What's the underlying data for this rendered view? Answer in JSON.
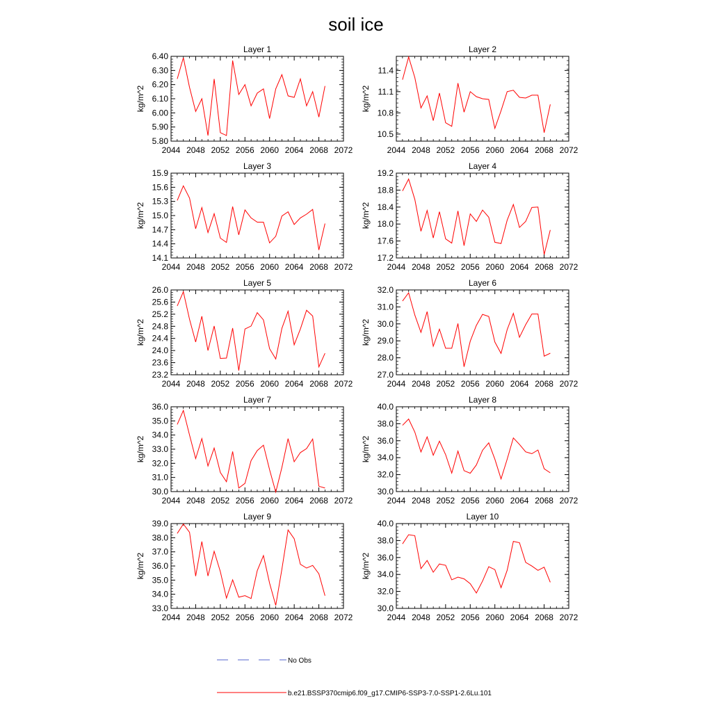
{
  "title": "soil ice",
  "legend": {
    "entries": [
      {
        "label": "No Obs",
        "color": "#5566cc",
        "dashed": true
      },
      {
        "label": "b.e21.BSSP370cmip6.f09_g17.CMIP6-SSP3-7.0-SSP1-2.6Lu.101",
        "color": "#ff0000",
        "dashed": false
      }
    ]
  },
  "series_color": "#ff0000",
  "chart_data": [
    {
      "type": "line",
      "title": "Layer 1",
      "ylabel": "kg/m^2",
      "xlim": [
        2044,
        2072
      ],
      "ylim": [
        5.8,
        6.4
      ],
      "xticks": [
        "2044",
        "2048",
        "2052",
        "2056",
        "2060",
        "2064",
        "2068",
        "2072"
      ],
      "yticks": [
        "5.80",
        "5.90",
        "6.00",
        "6.10",
        "6.20",
        "6.30",
        "6.40"
      ],
      "x": [
        2045,
        2046,
        2047,
        2048,
        2049,
        2050,
        2051,
        2052,
        2053,
        2054,
        2055,
        2056,
        2057,
        2058,
        2059,
        2060,
        2061,
        2062,
        2063,
        2064,
        2065,
        2066,
        2067,
        2068,
        2069
      ],
      "y": [
        6.24,
        6.39,
        6.18,
        6.01,
        6.1,
        5.84,
        6.24,
        5.86,
        5.84,
        6.37,
        6.13,
        6.2,
        6.05,
        6.14,
        6.17,
        5.96,
        6.17,
        6.27,
        6.12,
        6.11,
        6.24,
        6.05,
        6.15,
        5.97,
        6.19
      ]
    },
    {
      "type": "line",
      "title": "Layer 2",
      "ylabel": "kg/m^2",
      "xlim": [
        2044,
        2072
      ],
      "ylim": [
        10.4,
        11.6
      ],
      "xticks": [
        "2044",
        "2048",
        "2052",
        "2056",
        "2060",
        "2064",
        "2068",
        "2072"
      ],
      "yticks": [
        "10.5",
        "10.8",
        "11.1",
        "11.4"
      ],
      "x": [
        2045,
        2046,
        2047,
        2048,
        2049,
        2050,
        2051,
        2052,
        2053,
        2054,
        2055,
        2056,
        2057,
        2058,
        2059,
        2060,
        2061,
        2062,
        2063,
        2064,
        2065,
        2066,
        2067,
        2068,
        2069
      ],
      "y": [
        11.27,
        11.59,
        11.3,
        10.87,
        11.04,
        10.69,
        11.08,
        10.66,
        10.61,
        11.22,
        10.81,
        11.1,
        11.03,
        11.0,
        10.99,
        10.58,
        10.83,
        11.1,
        11.12,
        11.02,
        11.01,
        11.05,
        11.05,
        10.52,
        10.92
      ]
    },
    {
      "type": "line",
      "title": "Layer 3",
      "ylabel": "kg/m^2",
      "xlim": [
        2044,
        2072
      ],
      "ylim": [
        14.1,
        15.9
      ],
      "xticks": [
        "2044",
        "2048",
        "2052",
        "2056",
        "2060",
        "2064",
        "2068",
        "2072"
      ],
      "yticks": [
        "14.1",
        "14.4",
        "14.7",
        "15.0",
        "15.3",
        "15.6",
        "15.9"
      ],
      "x": [
        2045,
        2046,
        2047,
        2048,
        2049,
        2050,
        2051,
        2052,
        2053,
        2054,
        2055,
        2056,
        2057,
        2058,
        2059,
        2060,
        2061,
        2062,
        2063,
        2064,
        2065,
        2066,
        2067,
        2068,
        2069
      ],
      "y": [
        15.32,
        15.63,
        15.37,
        14.72,
        15.17,
        14.64,
        15.04,
        14.52,
        14.43,
        15.19,
        14.59,
        15.12,
        14.95,
        14.86,
        14.86,
        14.42,
        14.56,
        14.99,
        15.08,
        14.81,
        14.95,
        15.03,
        15.13,
        14.27,
        14.83
      ]
    },
    {
      "type": "line",
      "title": "Layer 4",
      "ylabel": "kg/m^2",
      "xlim": [
        2044,
        2072
      ],
      "ylim": [
        17.2,
        19.2
      ],
      "xticks": [
        "2044",
        "2048",
        "2052",
        "2056",
        "2060",
        "2064",
        "2068",
        "2072"
      ],
      "yticks": [
        "17.2",
        "17.6",
        "18.0",
        "18.4",
        "18.8",
        "19.2"
      ],
      "x": [
        2045,
        2046,
        2047,
        2048,
        2049,
        2050,
        2051,
        2052,
        2053,
        2054,
        2055,
        2056,
        2057,
        2058,
        2059,
        2060,
        2061,
        2062,
        2063,
        2064,
        2065,
        2066,
        2067,
        2068,
        2069
      ],
      "y": [
        18.78,
        19.06,
        18.58,
        17.83,
        18.32,
        17.67,
        18.29,
        17.65,
        17.55,
        18.31,
        17.49,
        18.24,
        18.06,
        18.33,
        18.16,
        17.57,
        17.54,
        18.09,
        18.46,
        17.92,
        18.06,
        18.39,
        18.4,
        17.28,
        17.86
      ]
    },
    {
      "type": "line",
      "title": "Layer 5",
      "ylabel": "kg/m^2",
      "xlim": [
        2044,
        2072
      ],
      "ylim": [
        23.2,
        26.0
      ],
      "xticks": [
        "2044",
        "2048",
        "2052",
        "2056",
        "2060",
        "2064",
        "2068",
        "2072"
      ],
      "yticks": [
        "23.2",
        "23.6",
        "24.0",
        "24.4",
        "24.8",
        "25.2",
        "25.6",
        "26.0"
      ],
      "x": [
        2045,
        2046,
        2047,
        2048,
        2049,
        2050,
        2051,
        2052,
        2053,
        2054,
        2055,
        2056,
        2057,
        2058,
        2059,
        2060,
        2061,
        2062,
        2063,
        2064,
        2065,
        2066,
        2067,
        2068,
        2069
      ],
      "y": [
        25.47,
        25.94,
        25.03,
        24.28,
        25.13,
        24.0,
        24.81,
        23.74,
        23.75,
        24.74,
        23.34,
        24.71,
        24.81,
        25.25,
        25.01,
        24.06,
        23.72,
        24.73,
        25.3,
        24.19,
        24.71,
        25.33,
        25.14,
        23.46,
        23.91
      ]
    },
    {
      "type": "line",
      "title": "Layer 6",
      "ylabel": "kg/m^2",
      "xlim": [
        2044,
        2072
      ],
      "ylim": [
        27.0,
        32.0
      ],
      "xticks": [
        "2044",
        "2048",
        "2052",
        "2056",
        "2060",
        "2064",
        "2068",
        "2072"
      ],
      "yticks": [
        "27.0",
        "28.0",
        "29.0",
        "30.0",
        "31.0",
        "32.0"
      ],
      "x": [
        2045,
        2046,
        2047,
        2048,
        2049,
        2050,
        2051,
        2052,
        2053,
        2054,
        2055,
        2056,
        2057,
        2058,
        2059,
        2060,
        2061,
        2062,
        2063,
        2064,
        2065,
        2066,
        2067,
        2068,
        2069
      ],
      "y": [
        31.35,
        31.83,
        30.52,
        29.5,
        30.72,
        28.68,
        29.69,
        28.56,
        28.56,
        30.02,
        27.47,
        28.98,
        29.91,
        30.56,
        30.44,
        28.93,
        28.26,
        29.66,
        30.62,
        29.21,
        29.95,
        30.58,
        30.58,
        28.1,
        28.27
      ]
    },
    {
      "type": "line",
      "title": "Layer 7",
      "ylabel": "kg/m^2",
      "xlim": [
        2044,
        2072
      ],
      "ylim": [
        30.0,
        36.0
      ],
      "xticks": [
        "2044",
        "2048",
        "2052",
        "2056",
        "2060",
        "2064",
        "2068",
        "2072"
      ],
      "yticks": [
        "30.0",
        "31.0",
        "32.0",
        "33.0",
        "34.0",
        "35.0",
        "36.0"
      ],
      "x": [
        2045,
        2046,
        2047,
        2048,
        2049,
        2050,
        2051,
        2052,
        2053,
        2054,
        2055,
        2056,
        2057,
        2058,
        2059,
        2060,
        2061,
        2062,
        2063,
        2064,
        2065,
        2066,
        2067,
        2068,
        2069
      ],
      "y": [
        34.75,
        35.74,
        34.0,
        32.33,
        33.75,
        31.81,
        33.08,
        31.35,
        30.7,
        32.84,
        30.25,
        30.58,
        32.19,
        32.9,
        33.28,
        31.55,
        29.96,
        31.7,
        33.75,
        32.11,
        32.76,
        33.04,
        33.72,
        30.38,
        30.25
      ]
    },
    {
      "type": "line",
      "title": "Layer 8",
      "ylabel": "kg/m^2",
      "xlim": [
        2044,
        2072
      ],
      "ylim": [
        30.0,
        40.0
      ],
      "xticks": [
        "2044",
        "2048",
        "2052",
        "2056",
        "2060",
        "2064",
        "2068",
        "2072"
      ],
      "yticks": [
        "30.0",
        "32.0",
        "34.0",
        "36.0",
        "38.0",
        "40.0"
      ],
      "x": [
        2045,
        2046,
        2047,
        2048,
        2049,
        2050,
        2051,
        2052,
        2053,
        2054,
        2055,
        2056,
        2057,
        2058,
        2059,
        2060,
        2061,
        2062,
        2063,
        2064,
        2065,
        2066,
        2067,
        2068,
        2069
      ],
      "y": [
        37.81,
        38.56,
        37.02,
        34.67,
        36.45,
        34.29,
        35.94,
        34.35,
        32.18,
        34.77,
        32.47,
        32.16,
        33.14,
        34.87,
        35.75,
        33.83,
        31.49,
        33.81,
        36.33,
        35.56,
        34.69,
        34.47,
        34.9,
        32.69,
        32.21
      ]
    },
    {
      "type": "line",
      "title": "Layer 9",
      "ylabel": "kg/m^2",
      "xlim": [
        2044,
        2072
      ],
      "ylim": [
        33.0,
        39.0
      ],
      "xticks": [
        "2044",
        "2048",
        "2052",
        "2056",
        "2060",
        "2064",
        "2068",
        "2072"
      ],
      "yticks": [
        "33.0",
        "34.0",
        "35.0",
        "36.0",
        "37.0",
        "38.0",
        "39.0"
      ],
      "x": [
        2045,
        2046,
        2047,
        2048,
        2049,
        2050,
        2051,
        2052,
        2053,
        2054,
        2055,
        2056,
        2057,
        2058,
        2059,
        2060,
        2061,
        2062,
        2063,
        2064,
        2065,
        2066,
        2067,
        2068,
        2069
      ],
      "y": [
        38.3,
        38.97,
        38.38,
        35.28,
        37.73,
        35.29,
        37.04,
        35.6,
        33.73,
        35.02,
        33.79,
        33.9,
        33.7,
        35.67,
        36.74,
        34.79,
        33.21,
        35.77,
        38.55,
        37.93,
        36.12,
        35.85,
        36.04,
        35.45,
        33.9
      ]
    },
    {
      "type": "line",
      "title": "Layer 10",
      "ylabel": "kg/m^2",
      "xlim": [
        2044,
        2072
      ],
      "ylim": [
        30.0,
        40.0
      ],
      "xticks": [
        "2044",
        "2048",
        "2052",
        "2056",
        "2060",
        "2064",
        "2068",
        "2072"
      ],
      "yticks": [
        "30.0",
        "32.0",
        "34.0",
        "36.0",
        "38.0",
        "40.0"
      ],
      "x": [
        2045,
        2046,
        2047,
        2048,
        2049,
        2050,
        2051,
        2052,
        2053,
        2054,
        2055,
        2056,
        2057,
        2058,
        2059,
        2060,
        2061,
        2062,
        2063,
        2064,
        2065,
        2066,
        2067,
        2068,
        2069
      ],
      "y": [
        37.61,
        38.69,
        38.57,
        34.69,
        35.65,
        34.26,
        35.24,
        35.08,
        33.37,
        33.69,
        33.48,
        32.91,
        31.81,
        33.22,
        34.91,
        34.57,
        32.44,
        34.49,
        37.9,
        37.75,
        35.43,
        34.99,
        34.48,
        34.86,
        33.08
      ]
    }
  ]
}
